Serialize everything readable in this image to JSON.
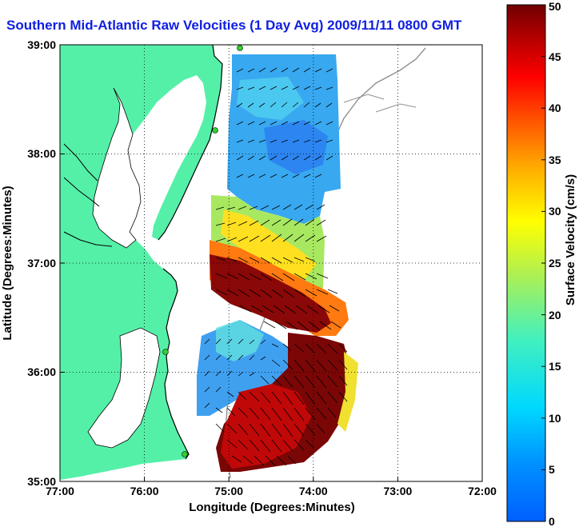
{
  "title": "Southern Mid-Atlantic Raw Velocities (1 Day Avg) 2009/11/11 0800 GMT",
  "map": {
    "xlabel": "Longitude (Degrees:Minutes)",
    "ylabel": "Latitude (Degrees:Minutes)",
    "lon_range": [
      -77,
      -72
    ],
    "lat_range": [
      35,
      39
    ],
    "lon_ticks": [
      "77:00",
      "76:00",
      "75:00",
      "74:00",
      "73:00",
      "72:00"
    ],
    "lat_ticks": [
      "39:00",
      "38:00",
      "37:00",
      "36:00",
      "35:00"
    ],
    "land_color": "#55f0a8",
    "water_color": "#ffffff",
    "station_color": "#30d030"
  },
  "colorbar": {
    "label": "Surface Velocity (cm/s)",
    "min": 0,
    "max": 50,
    "ticks": [
      "0",
      "5",
      "10",
      "15",
      "20",
      "25",
      "30",
      "35",
      "40",
      "45",
      "50"
    ],
    "colormap": "jet"
  }
}
